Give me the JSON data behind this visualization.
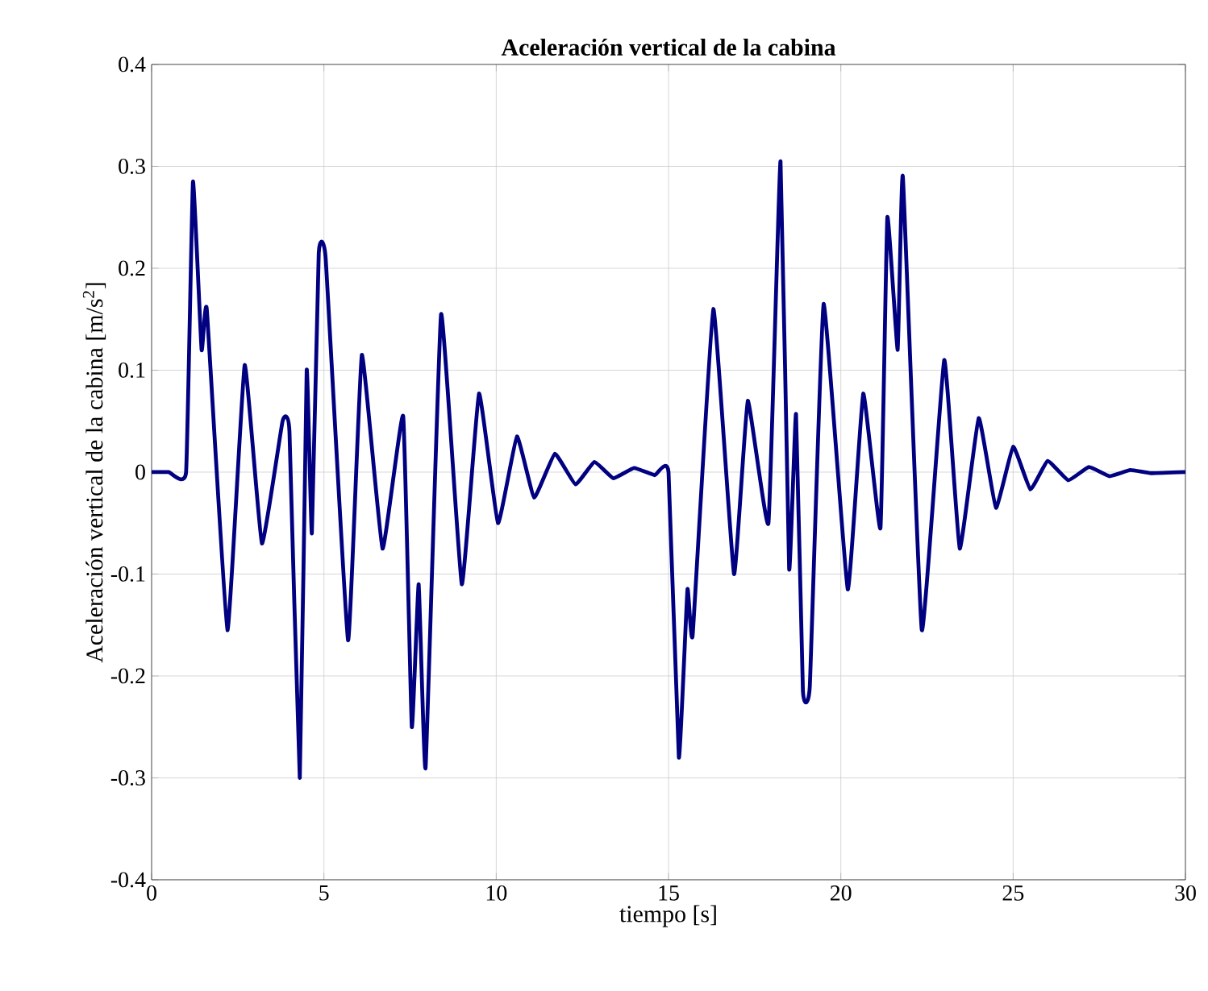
{
  "chart_data": {
    "type": "line",
    "title": "Aceleración vertical de la cabina",
    "xlabel": "tiempo [s]",
    "ylabel": "Aceleración vertical de la cabina [m/s$^{2}$]",
    "x": [
      0,
      0.5,
      1.0,
      1.2,
      1.45,
      1.6,
      2.2,
      2.7,
      3.2,
      3.8,
      4.0,
      4.3,
      4.5,
      4.65,
      4.85,
      5.05,
      5.7,
      6.1,
      6.7,
      7.3,
      7.55,
      7.75,
      7.95,
      8.4,
      9.0,
      9.5,
      10.05,
      10.6,
      11.1,
      11.7,
      12.3,
      12.85,
      13.4,
      14.0,
      14.6,
      15.0,
      15.3,
      15.55,
      15.7,
      16.3,
      16.9,
      17.3,
      17.9,
      18.25,
      18.5,
      18.7,
      18.9,
      19.1,
      19.5,
      20.2,
      20.65,
      21.15,
      21.35,
      21.65,
      21.8,
      22.35,
      23.0,
      23.45,
      24.0,
      24.5,
      25.0,
      25.5,
      26.0,
      26.6,
      27.2,
      27.8,
      28.4,
      29.0,
      30
    ],
    "series": [
      {
        "color": "#000080",
        "values": [
          0,
          0,
          0,
          0.285,
          0.12,
          0.16,
          -0.155,
          0.105,
          -0.07,
          0.05,
          0.04,
          -0.3,
          0.1,
          -0.06,
          0.215,
          0.21,
          -0.165,
          0.115,
          -0.075,
          0.055,
          -0.25,
          -0.11,
          -0.29,
          0.155,
          -0.11,
          0.077,
          -0.05,
          0.035,
          -0.025,
          0.018,
          -0.012,
          0.01,
          -0.006,
          0.004,
          -0.003,
          0,
          -0.28,
          -0.115,
          -0.16,
          0.16,
          -0.1,
          0.07,
          -0.05,
          0.305,
          -0.095,
          0.057,
          -0.215,
          -0.21,
          0.165,
          -0.115,
          0.077,
          -0.055,
          0.25,
          0.12,
          0.29,
          -0.155,
          0.11,
          -0.075,
          0.053,
          -0.035,
          0.025,
          -0.017,
          0.011,
          -0.008,
          0.005,
          -0.004,
          0.002,
          -0.001,
          0
        ]
      }
    ],
    "xlim": [
      0,
      30
    ],
    "xticks": [
      0,
      5,
      10,
      15,
      20,
      25,
      30
    ],
    "ylim": [
      -0.4,
      0.4
    ],
    "yticks": [
      -0.4,
      -0.3,
      -0.2,
      -0.1,
      0,
      0.1,
      0.2,
      0.3,
      0.4
    ],
    "grid": true,
    "marker": "none",
    "line_style": "solid"
  }
}
